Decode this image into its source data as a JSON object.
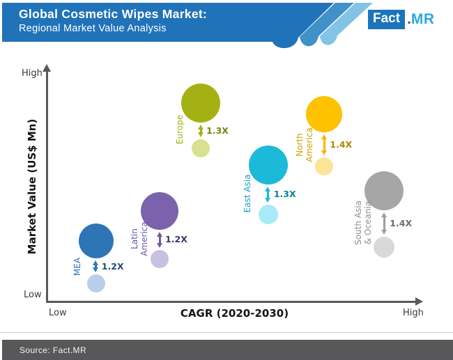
{
  "header": {
    "title_line1": "Global Cosmetic Wipes Market:",
    "title_line2": "Regional Market Value Analysis",
    "logo": {
      "fact": "Fact",
      "dot": ".",
      "mr": "MR"
    },
    "colors": {
      "banner": "#2173b9",
      "stripe_mid": "#4191c9",
      "stripe_light": "#82c3e6",
      "logo_box": "#1c75bc",
      "logo_dot": "#4f5458",
      "logo_mr": "#29a9e0"
    }
  },
  "footer": {
    "source": "Source: Fact.MR",
    "colors": {
      "bar": "#58585a",
      "text": "#f5f5f5",
      "hairline": "#c9c9c9"
    }
  },
  "chart_data": {
    "type": "bubble",
    "title": "Global Cosmetic Wipes Market: Regional Market Value Analysis",
    "xlabel": "CAGR (2020-2030)",
    "ylabel": "Market Value (US$ Mn)",
    "axis_labels": {
      "y_top": "High",
      "y_bottom": "Low",
      "x_left": "Low",
      "x_right": "High"
    },
    "grid": false,
    "legend_position": "none",
    "x_axis_scale": "qualitative Low to High",
    "y_axis_scale": "qualitative Low to High",
    "regions": [
      {
        "name": "MEA",
        "label_lines": "MEA",
        "multiplier": "1.2X",
        "cagr_rel": 0.13,
        "value_rel": 0.26,
        "value_small_rel": 0.08,
        "r_big": 25,
        "r_small": 13,
        "colors": {
          "main": "#2e75b6",
          "light": "#b9cfe8",
          "label": "#2e75b6",
          "ratio": "#1f4e79",
          "arrow": "#2e75b6"
        }
      },
      {
        "name": "Latin America",
        "label_lines": "Latin\nAmerica",
        "multiplier": "1.2X",
        "cagr_rel": 0.3,
        "value_rel": 0.39,
        "value_small_rel": 0.185,
        "r_big": 27,
        "r_small": 13,
        "colors": {
          "main": "#7a63ac",
          "light": "#c8c0de",
          "label": "#6a55a3",
          "ratio": "#43316b",
          "arrow": "#7058a6"
        }
      },
      {
        "name": "Europe",
        "label_lines": "Europe",
        "multiplier": "1.3X",
        "cagr_rel": 0.41,
        "value_rel": 0.85,
        "value_small_rel": 0.655,
        "r_big": 28,
        "r_small": 13,
        "colors": {
          "main": "#a4b112",
          "light": "#d9e08f",
          "label": "#a4b112",
          "ratio": "#7a840c",
          "arrow": "#a4b112"
        }
      },
      {
        "name": "East Asia",
        "label_lines": "East Asia",
        "multiplier": "1.3X",
        "cagr_rel": 0.59,
        "value_rel": 0.585,
        "value_small_rel": 0.375,
        "r_big": 28,
        "r_small": 14,
        "colors": {
          "main": "#1cb9d9",
          "light": "#a8eaf8",
          "label": "#14a0c2",
          "ratio": "#0b7f9e",
          "arrow": "#1cb9d9"
        }
      },
      {
        "name": "North America",
        "label_lines": "North\nAmerica",
        "multiplier": "1.4X",
        "cagr_rel": 0.74,
        "value_rel": 0.8,
        "value_small_rel": 0.578,
        "r_big": 26,
        "r_small": 13,
        "colors": {
          "main": "#fec200",
          "light": "#fde598",
          "label": "#cfa100",
          "ratio": "#b38600",
          "arrow": "#f5b800"
        }
      },
      {
        "name": "South Asia & Oceania",
        "label_lines": "South Asia\n& Oceania",
        "multiplier": "1.4X",
        "cagr_rel": 0.9,
        "value_rel": 0.475,
        "value_small_rel": 0.235,
        "r_big": 28,
        "r_small": 15,
        "colors": {
          "main": "#a6a6a6",
          "light": "#d9d9d9",
          "label": "#8f8f8f",
          "ratio": "#6e6e6e",
          "arrow": "#9e9e9e"
        }
      }
    ]
  }
}
